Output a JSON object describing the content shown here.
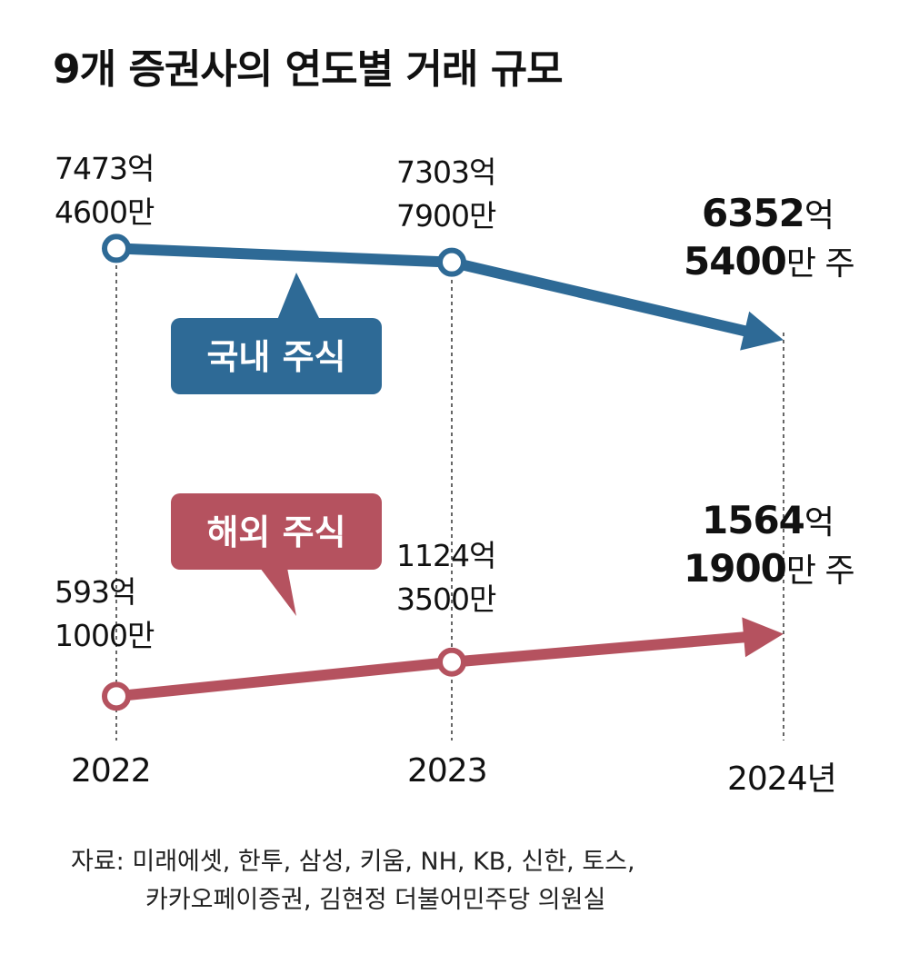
{
  "title": "9개 증권사의 연도별 거래 규모",
  "colors": {
    "domestic": "#2e6a96",
    "overseas": "#b5525f",
    "guide": "#333333",
    "text": "#111111"
  },
  "chart_data": {
    "type": "line",
    "title": "9개 증권사의 연도별 거래 규모",
    "x": [
      "2022",
      "2023",
      "2024"
    ],
    "x_tick_labels": [
      "2022",
      "2023",
      "2024년"
    ],
    "unit": "주",
    "series": [
      {
        "name": "국내 주식",
        "values": [
          747346000000,
          730379000000,
          635254000000
        ],
        "labels": [
          {
            "line1": "7473억",
            "line2": "4600만"
          },
          {
            "line1": "7303억",
            "line2": "7900만"
          },
          {
            "n1": "6352",
            "u1": "억",
            "n2": "5400",
            "u2": "만 주"
          }
        ]
      },
      {
        "name": "해외 주식",
        "values": [
          59310000000,
          112435000000,
          156419000000
        ],
        "labels": [
          {
            "line1": "593억",
            "line2": "1000만"
          },
          {
            "line1": "1124억",
            "line2": "3500만"
          },
          {
            "n1": "1564",
            "u1": "억",
            "n2": "1900",
            "u2": "만 주"
          }
        ]
      }
    ]
  },
  "source": {
    "line1": "자료: 미래에셋, 한투, 삼성, 키움, NH, KB, 신한, 토스,",
    "line2": "카카오페이증권, 김현정 더불어민주당 의원실"
  }
}
